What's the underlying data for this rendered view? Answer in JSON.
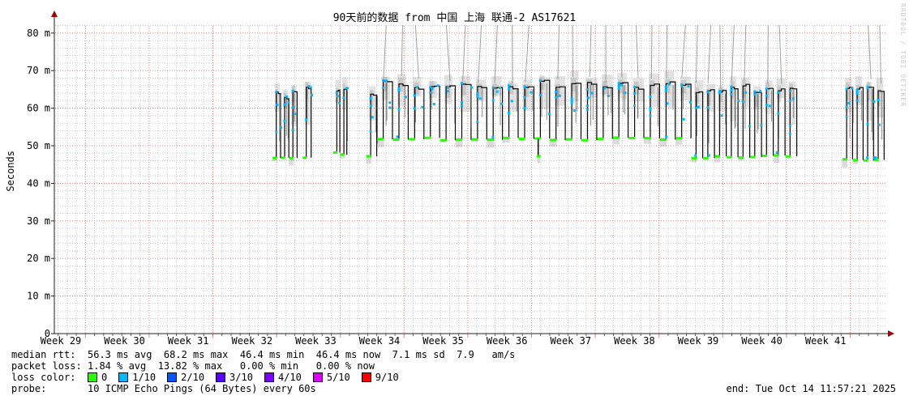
{
  "watermark": "RRDTOOL / TOBI OETIKER",
  "chart_data": {
    "type": "line",
    "subtype": "smokeping-latency",
    "title": "90天前的数据 from 中国 上海 联通-2 AS17621",
    "ylabel": "Seconds",
    "y_tick_labels": [
      "0",
      "10 m",
      "20 m",
      "30 m",
      "40 m",
      "50 m",
      "60 m",
      "70 m",
      "80 m"
    ],
    "y_tick_values_ms": [
      0,
      10,
      20,
      30,
      40,
      50,
      60,
      70,
      80
    ],
    "ylim_ms": [
      0,
      80
    ],
    "x_tick_labels": [
      "Week 29",
      "Week 30",
      "Week 31",
      "Week 32",
      "Week 33",
      "Week 34",
      "Week 35",
      "Week 36",
      "Week 37",
      "Week 38",
      "Week 39",
      "Week 40",
      "Week 41"
    ],
    "grid": {
      "minor_color": "#c8c8c8",
      "major_color": "#e97b7b",
      "x_minor_unit": "day",
      "x_major_unit": "week",
      "y_minor_ms": 2,
      "y_major_ms": 10
    },
    "colors": {
      "median_line": "#050505",
      "smoke": "#808080",
      "top_spike_line": "#a0a0a0",
      "axis": "#222222",
      "arrow": "#a00000"
    },
    "series": [
      {
        "name": "median rtt",
        "unit": "ms",
        "bursts": [
          {
            "week_start": 32.33,
            "week_end": 32.72,
            "low_ms": 46.5,
            "high_ms": 63.5,
            "period_weeks": 0.13,
            "top_lines": false
          },
          {
            "week_start": 32.8,
            "week_end": 32.94,
            "low_ms": 46.8,
            "high_ms": 65.0,
            "period_weeks": 0.14,
            "top_lines": false
          },
          {
            "week_start": 33.28,
            "week_end": 33.5,
            "low_ms": 48.0,
            "high_ms": 64.5,
            "period_weeks": 0.11,
            "top_lines": false
          },
          {
            "week_start": 33.8,
            "week_end": 33.97,
            "low_ms": 47.0,
            "high_ms": 64.0,
            "period_weeks": 0.17,
            "top_lines": true
          },
          {
            "week_start": 33.97,
            "week_end": 38.9,
            "low_ms": 51.8,
            "high_ms": 66.3,
            "period_weeks": 0.245,
            "top_lines": true
          },
          {
            "week_start": 38.9,
            "week_end": 40.56,
            "low_ms": 47.0,
            "high_ms": 65.0,
            "period_weeks": 0.185,
            "top_lines": true
          },
          {
            "week_start": 41.27,
            "week_end": 41.93,
            "low_ms": 46.5,
            "high_ms": 65.5,
            "period_weeks": 0.165,
            "top_lines": true
          }
        ],
        "dip": {
          "week": 36.49,
          "low_ms": 47.3
        }
      }
    ],
    "stats": {
      "median_avg_ms": 56.3,
      "median_max_ms": 68.2,
      "median_min_ms": 46.4,
      "median_now_ms": 46.4,
      "sd_ms": 7.1,
      "am_per_s": 7.9,
      "loss_avg_pct": 1.84,
      "loss_max_pct": 13.82,
      "loss_min_pct": 0.0,
      "loss_now_pct": 0.0
    }
  },
  "legend": {
    "rows": [
      {
        "label": "median rtt:",
        "value": "56.3 ms avg  68.2 ms max  46.4 ms min  46.4 ms now  7.1 ms sd  7.9   am/s"
      },
      {
        "label": "packet loss:",
        "value": "1.84 % avg  13.82 % max   0.00 % min   0.00 % now"
      }
    ],
    "loss_color_label": "loss color:",
    "loss_colors": [
      {
        "label": "0",
        "color": "#26ff00"
      },
      {
        "label": "1/10",
        "color": "#00b8ff"
      },
      {
        "label": "2/10",
        "color": "#0059ff"
      },
      {
        "label": "3/10",
        "color": "#5e00ff"
      },
      {
        "label": "4/10",
        "color": "#7e00ff"
      },
      {
        "label": "5/10",
        "color": "#dd00ff"
      },
      {
        "label": "9/10",
        "color": "#ff0000"
      }
    ],
    "probe_label": "probe:",
    "probe_value": "10 ICMP Echo Pings (64 Bytes) every 60s",
    "end_text": "end: Tue Oct 14 11:57:21 2025"
  }
}
